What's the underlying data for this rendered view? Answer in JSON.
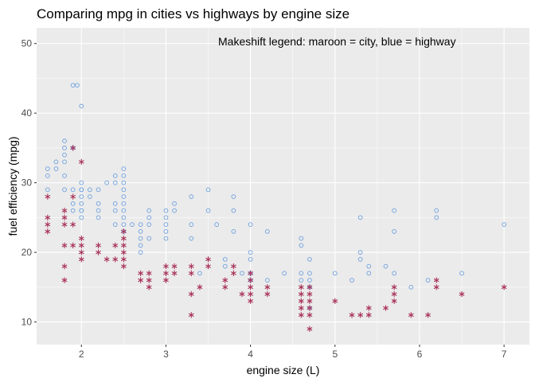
{
  "chart_data": {
    "type": "scatter",
    "title": "Comparing mpg in cities vs highways by engine size",
    "xlabel": "engine size (L)",
    "ylabel": "fuel efficiency (mpg)",
    "annotation": "Makeshift legend: maroon = city, blue = highway",
    "xlim": [
      1.47,
      7.3
    ],
    "ylim": [
      6.75,
      52.25
    ],
    "x_ticks": [
      2,
      3,
      4,
      5,
      6,
      7
    ],
    "x_tick_labels": [
      "2",
      "3",
      "4",
      "5",
      "6",
      "7"
    ],
    "y_ticks": [
      10,
      20,
      30,
      40,
      50
    ],
    "y_tick_labels": [
      "10",
      "20",
      "30",
      "40",
      "50"
    ],
    "grid": true,
    "background": "#ebebeb",
    "series": [
      {
        "key": "highway",
        "marker": "open-circle",
        "color": "#6a9fe0",
        "points": [
          [
            1.6,
            29
          ],
          [
            1.6,
            31
          ],
          [
            1.6,
            32
          ],
          [
            1.7,
            32
          ],
          [
            1.7,
            33
          ],
          [
            1.8,
            29
          ],
          [
            1.8,
            31
          ],
          [
            1.8,
            33
          ],
          [
            1.8,
            35
          ],
          [
            1.8,
            36
          ],
          [
            1.8,
            34
          ],
          [
            1.9,
            44
          ],
          [
            1.9,
            35
          ],
          [
            1.9,
            29
          ],
          [
            1.9,
            26
          ],
          [
            1.9,
            27
          ],
          [
            1.95,
            44
          ],
          [
            2.0,
            41
          ],
          [
            2.0,
            29
          ],
          [
            2.0,
            30
          ],
          [
            2.0,
            26
          ],
          [
            2.0,
            28
          ],
          [
            2.0,
            29
          ],
          [
            2.0,
            27
          ],
          [
            2.0,
            26
          ],
          [
            2.0,
            25
          ],
          [
            2.1,
            29
          ],
          [
            2.1,
            28
          ],
          [
            2.2,
            29
          ],
          [
            2.2,
            27
          ],
          [
            2.2,
            26
          ],
          [
            2.2,
            25
          ],
          [
            2.3,
            30
          ],
          [
            2.4,
            31
          ],
          [
            2.4,
            30
          ],
          [
            2.4,
            27
          ],
          [
            2.4,
            26
          ],
          [
            2.4,
            24
          ],
          [
            2.5,
            31
          ],
          [
            2.5,
            30
          ],
          [
            2.5,
            29
          ],
          [
            2.5,
            28
          ],
          [
            2.5,
            27
          ],
          [
            2.5,
            26
          ],
          [
            2.5,
            25
          ],
          [
            2.5,
            24
          ],
          [
            2.5,
            23
          ],
          [
            2.5,
            32
          ],
          [
            2.6,
            24
          ],
          [
            2.7,
            24
          ],
          [
            2.7,
            23
          ],
          [
            2.7,
            22
          ],
          [
            2.7,
            21
          ],
          [
            2.7,
            20
          ],
          [
            2.8,
            26
          ],
          [
            2.8,
            25
          ],
          [
            2.8,
            24
          ],
          [
            2.8,
            22
          ],
          [
            3.0,
            26
          ],
          [
            3.0,
            25
          ],
          [
            3.0,
            24
          ],
          [
            3.0,
            23
          ],
          [
            3.0,
            22
          ],
          [
            3.1,
            27
          ],
          [
            3.1,
            26
          ],
          [
            3.3,
            28
          ],
          [
            3.3,
            24
          ],
          [
            3.3,
            22
          ],
          [
            3.4,
            17
          ],
          [
            3.5,
            29
          ],
          [
            3.5,
            26
          ],
          [
            3.6,
            24
          ],
          [
            3.7,
            19
          ],
          [
            3.7,
            18
          ],
          [
            3.8,
            28
          ],
          [
            3.8,
            26
          ],
          [
            3.8,
            23
          ],
          [
            3.9,
            17
          ],
          [
            4.0,
            24
          ],
          [
            4.0,
            20
          ],
          [
            4.0,
            19
          ],
          [
            4.0,
            17
          ],
          [
            4.0,
            16
          ],
          [
            4.2,
            23
          ],
          [
            4.2,
            16
          ],
          [
            4.4,
            17
          ],
          [
            4.6,
            22
          ],
          [
            4.6,
            21
          ],
          [
            4.6,
            17
          ],
          [
            4.6,
            16
          ],
          [
            4.7,
            19
          ],
          [
            4.7,
            17
          ],
          [
            4.7,
            16
          ],
          [
            4.7,
            15
          ],
          [
            4.7,
            12
          ],
          [
            5.0,
            17
          ],
          [
            5.2,
            16
          ],
          [
            5.3,
            25
          ],
          [
            5.3,
            20
          ],
          [
            5.3,
            19
          ],
          [
            5.4,
            18
          ],
          [
            5.4,
            17
          ],
          [
            5.6,
            18
          ],
          [
            5.7,
            26
          ],
          [
            5.7,
            23
          ],
          [
            5.7,
            17
          ],
          [
            5.9,
            15
          ],
          [
            6.1,
            16
          ],
          [
            6.2,
            26
          ],
          [
            6.2,
            25
          ],
          [
            6.5,
            17
          ],
          [
            7.0,
            24
          ]
        ]
      },
      {
        "key": "city",
        "marker": "asterisk",
        "color": "#a83258",
        "points": [
          [
            1.6,
            28
          ],
          [
            1.6,
            25
          ],
          [
            1.6,
            24
          ],
          [
            1.6,
            23
          ],
          [
            1.8,
            26
          ],
          [
            1.8,
            25
          ],
          [
            1.8,
            24
          ],
          [
            1.8,
            21
          ],
          [
            1.8,
            18
          ],
          [
            1.8,
            16
          ],
          [
            1.9,
            35
          ],
          [
            1.9,
            28
          ],
          [
            1.9,
            24
          ],
          [
            1.9,
            21
          ],
          [
            2.0,
            33
          ],
          [
            2.0,
            22
          ],
          [
            2.0,
            21
          ],
          [
            2.0,
            20
          ],
          [
            2.0,
            19
          ],
          [
            2.2,
            21
          ],
          [
            2.2,
            20
          ],
          [
            2.3,
            19
          ],
          [
            2.4,
            21
          ],
          [
            2.4,
            19
          ],
          [
            2.5,
            23
          ],
          [
            2.5,
            22
          ],
          [
            2.5,
            21
          ],
          [
            2.5,
            20
          ],
          [
            2.5,
            19
          ],
          [
            2.5,
            18
          ],
          [
            2.7,
            17
          ],
          [
            2.7,
            16
          ],
          [
            2.8,
            17
          ],
          [
            2.8,
            16
          ],
          [
            2.8,
            15
          ],
          [
            3.0,
            18
          ],
          [
            3.0,
            17
          ],
          [
            3.0,
            16
          ],
          [
            3.1,
            18
          ],
          [
            3.1,
            17
          ],
          [
            3.3,
            18
          ],
          [
            3.3,
            17
          ],
          [
            3.3,
            14
          ],
          [
            3.4,
            15
          ],
          [
            3.5,
            19
          ],
          [
            3.5,
            18
          ],
          [
            3.7,
            16
          ],
          [
            3.7,
            15
          ],
          [
            3.8,
            18
          ],
          [
            3.8,
            17
          ],
          [
            3.9,
            14
          ],
          [
            4.0,
            17
          ],
          [
            4.0,
            16
          ],
          [
            4.0,
            15
          ],
          [
            4.0,
            14
          ],
          [
            4.0,
            13
          ],
          [
            4.2,
            15
          ],
          [
            4.2,
            14
          ],
          [
            4.6,
            15
          ],
          [
            4.6,
            14
          ],
          [
            4.6,
            13
          ],
          [
            4.6,
            12
          ],
          [
            4.6,
            11
          ],
          [
            4.7,
            15
          ],
          [
            4.7,
            14
          ],
          [
            4.7,
            13
          ],
          [
            4.7,
            12
          ],
          [
            4.7,
            11
          ],
          [
            4.7,
            9
          ],
          [
            5.0,
            13
          ],
          [
            5.2,
            11
          ],
          [
            5.3,
            11
          ],
          [
            5.4,
            12
          ],
          [
            5.4,
            11
          ],
          [
            5.6,
            12
          ],
          [
            5.7,
            15
          ],
          [
            5.7,
            14
          ],
          [
            5.7,
            13
          ],
          [
            5.9,
            11
          ],
          [
            6.1,
            11
          ],
          [
            6.2,
            16
          ],
          [
            6.2,
            15
          ],
          [
            6.5,
            14
          ],
          [
            7.0,
            15
          ],
          [
            3.3,
            11
          ]
        ]
      }
    ]
  }
}
